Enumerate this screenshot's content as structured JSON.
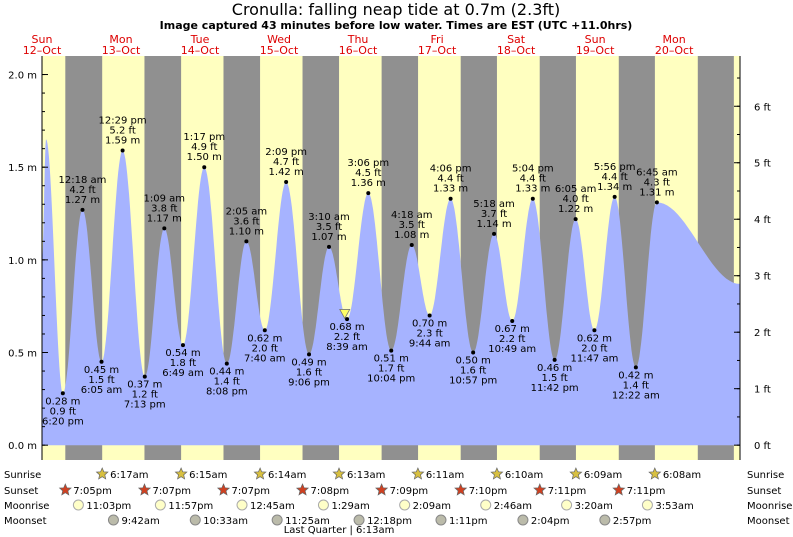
{
  "title": "Cronulla: falling  neap tide at 0.7m (2.3ft)",
  "subtitle": "Image captured 43 minutes before low water. Times are EST (UTC +11.0hrs)",
  "colors": {
    "day": "#ffffc0",
    "night": "#909090",
    "tide": "#a6b3ff",
    "day_label": "#dd0000",
    "marker": "#ffff66"
  },
  "days": [
    {
      "name": "Sun",
      "date": "12–Oct"
    },
    {
      "name": "Mon",
      "date": "13–Oct"
    },
    {
      "name": "Tue",
      "date": "14–Oct"
    },
    {
      "name": "Wed",
      "date": "15–Oct"
    },
    {
      "name": "Thu",
      "date": "16–Oct"
    },
    {
      "name": "Fri",
      "date": "17–Oct"
    },
    {
      "name": "Sat",
      "date": "18–Oct"
    },
    {
      "name": "Sun",
      "date": "19–Oct"
    },
    {
      "name": "Mon",
      "date": "20–Oct"
    }
  ],
  "chart_data": {
    "type": "area",
    "x_unit": "hours from 12-Oct 00:00 (EST)",
    "y_unit": "m",
    "ylim": [
      -0.08,
      2.1
    ],
    "xlim": [
      12.0,
      224.0
    ],
    "left_axis_ticks": [
      {
        "v": 0.0,
        "label": "0.0 m"
      },
      {
        "v": 0.5,
        "label": "0.5 m"
      },
      {
        "v": 1.0,
        "label": "1.0 m"
      },
      {
        "v": 1.5,
        "label": "1.5 m"
      },
      {
        "v": 2.0,
        "label": "2.0 m"
      }
    ],
    "right_axis_ticks": [
      {
        "ft": 0,
        "label": "0 ft"
      },
      {
        "ft": 1,
        "label": "1 ft"
      },
      {
        "ft": 2,
        "label": "2 ft"
      },
      {
        "ft": 3,
        "label": "3 ft"
      },
      {
        "ft": 4,
        "label": "4 ft"
      },
      {
        "ft": 5,
        "label": "5 ft"
      },
      {
        "ft": 6,
        "label": "6 ft"
      }
    ],
    "nights": [
      [
        19.08,
        30.28
      ],
      [
        43.12,
        54.25
      ],
      [
        67.12,
        78.23
      ],
      [
        91.13,
        102.22
      ],
      [
        115.15,
        126.22
      ],
      [
        139.17,
        150.18
      ],
      [
        163.17,
        174.17
      ],
      [
        187.18,
        198.15
      ],
      [
        211.18,
        222.13
      ]
    ],
    "series_start": {
      "t": 12.0,
      "v": 1.0
    },
    "series_peak": {
      "t": 13.25,
      "v": 1.65
    },
    "series_end": {
      "t": 224.0,
      "v": 0.87
    },
    "current": {
      "t": 103.95,
      "v": 0.7
    },
    "extremes": [
      {
        "t": 18.33,
        "v": 0.28,
        "type": "low",
        "time": "6:20 pm",
        "ft": "0.9 ft",
        "m": "0.28 m"
      },
      {
        "t": 24.3,
        "v": 1.27,
        "type": "high",
        "time": "12:18 am",
        "ft": "4.2 ft",
        "m": "1.27 m"
      },
      {
        "t": 30.08,
        "v": 0.45,
        "type": "low",
        "time": "6:05 am",
        "ft": "1.5 ft",
        "m": "0.45 m"
      },
      {
        "t": 36.48,
        "v": 1.59,
        "type": "high",
        "time": "12:29 pm",
        "ft": "5.2 ft",
        "m": "1.59 m"
      },
      {
        "t": 43.22,
        "v": 0.37,
        "type": "low",
        "time": "7:13 pm",
        "ft": "1.2 ft",
        "m": "0.37 m"
      },
      {
        "t": 49.15,
        "v": 1.17,
        "type": "high",
        "time": "1:09 am",
        "ft": "3.8 ft",
        "m": "1.17 m"
      },
      {
        "t": 54.82,
        "v": 0.54,
        "type": "low",
        "time": "6:49 am",
        "ft": "1.8 ft",
        "m": "0.54 m"
      },
      {
        "t": 61.28,
        "v": 1.5,
        "type": "high",
        "time": "1:17 pm",
        "ft": "4.9 ft",
        "m": "1.50 m"
      },
      {
        "t": 68.13,
        "v": 0.44,
        "type": "low",
        "time": "8:08 pm",
        "ft": "1.4 ft",
        "m": "0.44 m"
      },
      {
        "t": 74.08,
        "v": 1.1,
        "type": "high",
        "time": "2:05 am",
        "ft": "3.6 ft",
        "m": "1.10 m"
      },
      {
        "t": 79.67,
        "v": 0.62,
        "type": "low",
        "time": "7:40 am",
        "ft": "2.0 ft",
        "m": "0.62 m"
      },
      {
        "t": 86.15,
        "v": 1.42,
        "type": "high",
        "time": "2:09 pm",
        "ft": "4.7 ft",
        "m": "1.42 m"
      },
      {
        "t": 93.1,
        "v": 0.49,
        "type": "low",
        "time": "9:06 pm",
        "ft": "1.6 ft",
        "m": "0.49 m"
      },
      {
        "t": 99.17,
        "v": 1.07,
        "type": "high",
        "time": "3:10 am",
        "ft": "3.5 ft",
        "m": "1.07 m"
      },
      {
        "t": 104.65,
        "v": 0.68,
        "type": "low",
        "time": "8:39 am",
        "ft": "2.2 ft",
        "m": "0.68 m"
      },
      {
        "t": 111.1,
        "v": 1.36,
        "type": "high",
        "time": "3:06 pm",
        "ft": "4.5 ft",
        "m": "1.36 m"
      },
      {
        "t": 118.07,
        "v": 0.51,
        "type": "low",
        "time": "10:04 pm",
        "ft": "1.7 ft",
        "m": "0.51 m"
      },
      {
        "t": 124.3,
        "v": 1.08,
        "type": "high",
        "time": "4:18 am",
        "ft": "3.5 ft",
        "m": "1.08 m"
      },
      {
        "t": 129.73,
        "v": 0.7,
        "type": "low",
        "time": "9:44 am",
        "ft": "2.3 ft",
        "m": "0.70 m"
      },
      {
        "t": 136.1,
        "v": 1.33,
        "type": "high",
        "time": "4:06 pm",
        "ft": "4.4 ft",
        "m": "1.33 m"
      },
      {
        "t": 142.95,
        "v": 0.5,
        "type": "low",
        "time": "10:57 pm",
        "ft": "1.6 ft",
        "m": "0.50 m"
      },
      {
        "t": 149.3,
        "v": 1.14,
        "type": "high",
        "time": "5:18 am",
        "ft": "3.7 ft",
        "m": "1.14 m"
      },
      {
        "t": 154.82,
        "v": 0.67,
        "type": "low",
        "time": "10:49 am",
        "ft": "2.2 ft",
        "m": "0.67 m"
      },
      {
        "t": 161.07,
        "v": 1.33,
        "type": "high",
        "time": "5:04 pm",
        "ft": "4.4 ft",
        "m": "1.33 m"
      },
      {
        "t": 167.7,
        "v": 0.46,
        "type": "low",
        "time": "11:42 pm",
        "ft": "1.5 ft",
        "m": "0.46 m"
      },
      {
        "t": 174.08,
        "v": 1.22,
        "type": "high",
        "time": "6:05 am",
        "ft": "4.0 ft",
        "m": "1.22 m"
      },
      {
        "t": 179.78,
        "v": 0.62,
        "type": "low",
        "time": "11:47 am",
        "ft": "2.0 ft",
        "m": "0.62 m"
      },
      {
        "t": 185.93,
        "v": 1.34,
        "type": "high",
        "time": "5:56 pm",
        "ft": "4.4 ft",
        "m": "1.34 m"
      },
      {
        "t": 192.37,
        "v": 0.42,
        "type": "low",
        "time": "12:22 am",
        "ft": "1.4 ft",
        "m": "0.42 m"
      },
      {
        "t": 198.75,
        "v": 1.31,
        "type": "high",
        "time": "6:45 am",
        "ft": "4.3 ft",
        "m": "1.31 m"
      }
    ]
  },
  "legend_rows": {
    "sunrise": "Sunrise",
    "sunset": "Sunset",
    "moonrise": "Moonrise",
    "moonset": "Moonset"
  },
  "sunrise": [
    {
      "t": 30.28,
      "time": "6:17am"
    },
    {
      "t": 54.25,
      "time": "6:15am"
    },
    {
      "t": 78.23,
      "time": "6:14am"
    },
    {
      "t": 102.22,
      "time": "6:13am"
    },
    {
      "t": 126.18,
      "time": "6:11am"
    },
    {
      "t": 150.17,
      "time": "6:10am"
    },
    {
      "t": 174.15,
      "time": "6:09am"
    },
    {
      "t": 198.13,
      "time": "6:08am"
    }
  ],
  "sunset": [
    {
      "t": 19.08,
      "time": "7:05pm"
    },
    {
      "t": 43.12,
      "time": "7:07pm"
    },
    {
      "t": 67.12,
      "time": "7:07pm"
    },
    {
      "t": 91.13,
      "time": "7:08pm"
    },
    {
      "t": 115.15,
      "time": "7:09pm"
    },
    {
      "t": 139.17,
      "time": "7:10pm"
    },
    {
      "t": 163.18,
      "time": "7:11pm"
    },
    {
      "t": 187.18,
      "time": "7:11pm"
    }
  ],
  "moonrise": [
    {
      "t": 23.05,
      "time": "11:03pm"
    },
    {
      "t": 47.95,
      "time": "11:57pm"
    },
    {
      "t": 72.75,
      "time": "12:45am"
    },
    {
      "t": 97.48,
      "time": "1:29am"
    },
    {
      "t": 122.15,
      "time": "2:09am"
    },
    {
      "t": 146.77,
      "time": "2:46am"
    },
    {
      "t": 171.33,
      "time": "3:20am"
    },
    {
      "t": 195.88,
      "time": "3:53am"
    }
  ],
  "moonset": [
    {
      "t": 33.7,
      "time": "9:42am"
    },
    {
      "t": 58.55,
      "time": "10:33am"
    },
    {
      "t": 83.42,
      "time": "11:25am"
    },
    {
      "t": 108.3,
      "time": "12:18pm"
    },
    {
      "t": 133.18,
      "time": "1:11pm"
    },
    {
      "t": 158.07,
      "time": "2:04pm"
    },
    {
      "t": 182.95,
      "time": "2:57pm"
    }
  ],
  "moon_phase": {
    "t": 102.22,
    "label": "Last Quarter | 6:13am"
  }
}
